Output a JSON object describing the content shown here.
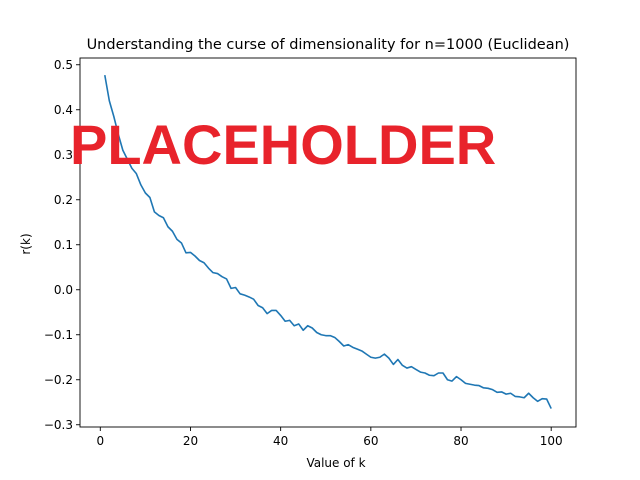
{
  "chart_data": {
    "type": "line",
    "title": "Understanding the curse of dimensionality for n=1000 (Euclidean)",
    "xlabel": "Value of k",
    "ylabel": "r(k)",
    "xlim": [
      -4.5,
      105.5
    ],
    "ylim": [
      -0.305,
      0.515
    ],
    "xticks": [
      0,
      20,
      40,
      60,
      80,
      100
    ],
    "yticks": [
      -0.3,
      -0.2,
      -0.1,
      0.0,
      0.1,
      0.2,
      0.3,
      0.4,
      0.5
    ],
    "xtick_labels": [
      "0",
      "20",
      "40",
      "60",
      "80",
      "100"
    ],
    "ytick_labels": [
      "−0.3",
      "−0.2",
      "−0.1",
      "0.0",
      "0.1",
      "0.2",
      "0.3",
      "0.4",
      "0.5"
    ],
    "grid": false,
    "series": [
      {
        "color": "#1f77b4",
        "x": [
          1,
          2,
          3,
          4,
          5,
          6,
          7,
          8,
          9,
          10,
          11,
          12,
          13,
          14,
          15,
          16,
          17,
          18,
          19,
          20,
          21,
          22,
          23,
          24,
          25,
          26,
          27,
          28,
          29,
          30,
          31,
          32,
          33,
          34,
          35,
          36,
          37,
          38,
          39,
          40,
          41,
          42,
          43,
          44,
          45,
          46,
          47,
          48,
          49,
          50,
          51,
          52,
          53,
          54,
          55,
          56,
          57,
          58,
          59,
          60,
          61,
          62,
          63,
          64,
          65,
          66,
          67,
          68,
          69,
          70,
          71,
          72,
          73,
          74,
          75,
          76,
          77,
          78,
          79,
          80,
          81,
          82,
          83,
          84,
          85,
          86,
          87,
          88,
          89,
          90,
          91,
          92,
          93,
          94,
          95,
          96,
          97,
          98,
          99,
          100
        ],
        "y": [
          0.477,
          0.42,
          0.385,
          0.345,
          0.31,
          0.29,
          0.27,
          0.258,
          0.233,
          0.215,
          0.205,
          0.173,
          0.165,
          0.16,
          0.14,
          0.13,
          0.112,
          0.104,
          0.082,
          0.083,
          0.075,
          0.065,
          0.06,
          0.048,
          0.038,
          0.036,
          0.029,
          0.024,
          0.003,
          0.005,
          -0.009,
          -0.012,
          -0.016,
          -0.021,
          -0.035,
          -0.04,
          -0.053,
          -0.046,
          -0.046,
          -0.057,
          -0.07,
          -0.068,
          -0.08,
          -0.076,
          -0.09,
          -0.08,
          -0.085,
          -0.095,
          -0.1,
          -0.102,
          -0.102,
          -0.106,
          -0.115,
          -0.125,
          -0.122,
          -0.128,
          -0.132,
          -0.136,
          -0.143,
          -0.15,
          -0.152,
          -0.15,
          -0.143,
          -0.152,
          -0.166,
          -0.155,
          -0.168,
          -0.174,
          -0.171,
          -0.177,
          -0.183,
          -0.185,
          -0.19,
          -0.191,
          -0.185,
          -0.185,
          -0.2,
          -0.203,
          -0.193,
          -0.2,
          -0.208,
          -0.21,
          -0.212,
          -0.213,
          -0.218,
          -0.219,
          -0.222,
          -0.228,
          -0.227,
          -0.232,
          -0.23,
          -0.237,
          -0.238,
          -0.24,
          -0.23,
          -0.24,
          -0.248,
          -0.242,
          -0.243,
          -0.264
        ]
      }
    ]
  },
  "watermark": {
    "text": "PLACEHOLDER",
    "color": "#e8232b"
  }
}
